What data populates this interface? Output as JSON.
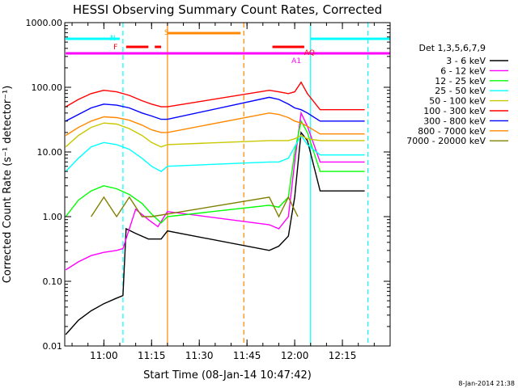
{
  "chart_data": {
    "type": "line",
    "title": "HESSI Observing Summary Count Rates, Corrected",
    "xlabel": "Start Time (08-Jan-14 10:47:42)",
    "ylabel": "Corrected Count Rate (s⁻¹ detector⁻¹)",
    "xlim": [
      "10:47:42",
      "12:30:00"
    ],
    "ylim": [
      0.01,
      1000
    ],
    "yscale": "log",
    "x_ticks": [
      "11:00",
      "11:15",
      "11:30",
      "11:45",
      "12:00",
      "12:15"
    ],
    "y_ticks": [
      "0.01",
      "0.10",
      "1.00",
      "10.00",
      "100.00",
      "1000.00"
    ],
    "legend_title": "Det 1,3,5,6,7,9",
    "legend_position": "right",
    "series": [
      {
        "name": "3 - 6 keV",
        "color": "#000000",
        "x": [
          "10:48",
          "10:52",
          "10:56",
          "11:00",
          "11:04",
          "11:06",
          "11:07",
          "11:10",
          "11:14",
          "11:18",
          "11:20",
          "11:52",
          "11:55",
          "11:58",
          "12:00",
          "12:02",
          "12:04",
          "12:08",
          "12:12",
          "12:16",
          "12:20",
          "12:22"
        ],
        "y": [
          0.015,
          0.025,
          0.035,
          0.045,
          0.055,
          0.06,
          0.65,
          0.55,
          0.45,
          0.45,
          0.6,
          0.3,
          0.35,
          0.5,
          2.0,
          20,
          15,
          2.5,
          2.5,
          2.5,
          2.5,
          2.5
        ]
      },
      {
        "name": "6 - 12 keV",
        "color": "#ff00ff",
        "x": [
          "10:48",
          "10:52",
          "10:56",
          "11:00",
          "11:04",
          "11:06",
          "11:10",
          "11:14",
          "11:17",
          "11:20",
          "11:52",
          "11:55",
          "11:58",
          "12:00",
          "12:02",
          "12:04",
          "12:08",
          "12:12",
          "12:16",
          "12:20",
          "12:22"
        ],
        "y": [
          0.15,
          0.2,
          0.25,
          0.28,
          0.3,
          0.32,
          1.3,
          0.9,
          0.7,
          1.2,
          0.75,
          0.65,
          1.0,
          7,
          40,
          25,
          7,
          7,
          7,
          7,
          7
        ]
      },
      {
        "name": "12 - 25 keV",
        "color": "#00ff00",
        "x": [
          "10:48",
          "10:52",
          "10:56",
          "11:00",
          "11:04",
          "11:08",
          "11:12",
          "11:15",
          "11:18",
          "11:20",
          "11:52",
          "11:55",
          "11:58",
          "12:00",
          "12:02",
          "12:04",
          "12:08",
          "12:12",
          "12:16",
          "12:20",
          "12:22"
        ],
        "y": [
          1.0,
          1.8,
          2.5,
          3.0,
          2.7,
          2.2,
          1.6,
          1.1,
          0.8,
          1.0,
          1.5,
          1.4,
          2.0,
          10,
          30,
          20,
          5,
          5,
          5,
          5,
          5
        ]
      },
      {
        "name": "25 - 50 keV",
        "color": "#00ffff",
        "x": [
          "10:48",
          "10:52",
          "10:56",
          "11:00",
          "11:04",
          "11:08",
          "11:12",
          "11:15",
          "11:18",
          "11:20",
          "11:52",
          "11:55",
          "11:58",
          "12:00",
          "12:02",
          "12:04",
          "12:08",
          "12:12",
          "12:16",
          "12:20",
          "12:22"
        ],
        "y": [
          5,
          8,
          12,
          14,
          13,
          11,
          8,
          6,
          5,
          6,
          7,
          7,
          8,
          12,
          18,
          13,
          9,
          9,
          9,
          9,
          9
        ]
      },
      {
        "name": "50 - 100 keV",
        "color": "#c8c800",
        "x": [
          "10:48",
          "10:52",
          "10:56",
          "11:00",
          "11:04",
          "11:08",
          "11:12",
          "11:15",
          "11:18",
          "11:20",
          "11:52",
          "11:55",
          "11:58",
          "12:00",
          "12:02",
          "12:04",
          "12:08",
          "12:12",
          "12:16",
          "12:20",
          "12:22"
        ],
        "y": [
          12,
          18,
          24,
          28,
          27,
          23,
          18,
          14,
          12,
          13,
          15,
          15,
          15,
          16,
          18,
          16,
          15,
          15,
          15,
          15,
          15
        ]
      },
      {
        "name": "100 - 300 keV",
        "color": "#ff0000",
        "x": [
          "10:48",
          "10:52",
          "10:56",
          "11:00",
          "11:04",
          "11:08",
          "11:12",
          "11:15",
          "11:18",
          "11:20",
          "11:52",
          "11:55",
          "11:58",
          "12:00",
          "12:02",
          "12:04",
          "12:08",
          "12:12",
          "12:16",
          "12:20",
          "12:22"
        ],
        "y": [
          50,
          65,
          80,
          90,
          85,
          75,
          62,
          55,
          50,
          50,
          90,
          85,
          80,
          85,
          120,
          80,
          45,
          45,
          45,
          45,
          45
        ]
      },
      {
        "name": "300 - 800 keV",
        "color": "#0000ff",
        "x": [
          "10:48",
          "10:52",
          "10:56",
          "11:00",
          "11:04",
          "11:08",
          "11:12",
          "11:15",
          "11:18",
          "11:20",
          "11:52",
          "11:55",
          "11:58",
          "12:00",
          "12:02",
          "12:04",
          "12:08",
          "12:12",
          "12:16",
          "12:20",
          "12:22"
        ],
        "y": [
          30,
          38,
          48,
          55,
          53,
          48,
          40,
          36,
          32,
          32,
          70,
          65,
          55,
          48,
          45,
          40,
          30,
          30,
          30,
          30,
          30
        ]
      },
      {
        "name": "800 - 7000 keV",
        "color": "#ff8800",
        "x": [
          "10:48",
          "10:52",
          "10:56",
          "11:00",
          "11:04",
          "11:08",
          "11:12",
          "11:15",
          "11:18",
          "11:20",
          "11:52",
          "11:55",
          "11:58",
          "12:00",
          "12:02",
          "12:04",
          "12:08",
          "12:12",
          "12:16",
          "12:20",
          "12:22"
        ],
        "y": [
          18,
          24,
          30,
          35,
          34,
          31,
          26,
          22,
          20,
          20,
          40,
          38,
          34,
          30,
          28,
          25,
          19,
          19,
          19,
          19,
          19
        ]
      },
      {
        "name": "7000 - 20000 keV",
        "color": "#808000",
        "x": [
          "10:56",
          "11:00",
          "11:04",
          "11:08",
          "11:12",
          "11:15",
          "11:52",
          "11:55",
          "11:58",
          "12:01"
        ],
        "y": [
          1.0,
          2.0,
          1.0,
          2.0,
          1.0,
          1.0,
          2.0,
          1.0,
          2.0,
          1.0
        ]
      }
    ],
    "annotations": [
      {
        "text": "N",
        "color": "#00ffff"
      },
      {
        "text": "S",
        "color": "#ff8800"
      },
      {
        "text": "F",
        "color": "#ff0000"
      },
      {
        "text": "AQ",
        "color": "#ff0000"
      },
      {
        "text": "A1",
        "color": "#ff00ff"
      }
    ],
    "flag_bars": [
      {
        "name": "N",
        "color": "#00ffff",
        "ranges": [
          [
            "10:48",
            "11:05"
          ],
          [
            "12:05",
            "12:30"
          ]
        ]
      },
      {
        "name": "S",
        "color": "#ff8800",
        "ranges": [
          [
            "11:20",
            "11:43"
          ]
        ]
      },
      {
        "name": "F",
        "color": "#ff0000",
        "ranges": [
          [
            "11:07",
            "11:14"
          ],
          [
            "11:16",
            "11:18"
          ],
          [
            "11:53",
            "12:03"
          ]
        ]
      },
      {
        "name": "A1",
        "color": "#ff00ff",
        "ranges": [
          [
            "10:48",
            "12:30"
          ]
        ]
      }
    ],
    "vertical_markers": [
      {
        "time": "11:06",
        "color": "#00ffff",
        "style": "dashed"
      },
      {
        "time": "11:20",
        "color": "#ff8800",
        "style": "solid"
      },
      {
        "time": "11:44",
        "color": "#ff8800",
        "style": "dashed"
      },
      {
        "time": "12:05",
        "color": "#00ffff",
        "style": "solid"
      },
      {
        "time": "12:23",
        "color": "#00ffff",
        "style": "dashed"
      }
    ],
    "footer": "8-Jan-2014 21:38"
  }
}
